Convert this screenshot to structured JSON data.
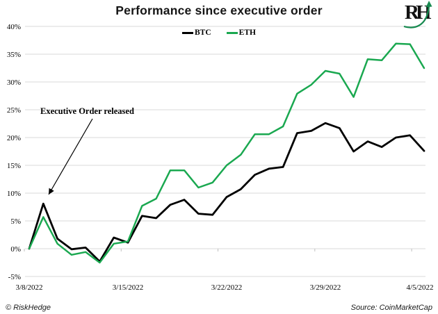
{
  "logo": {
    "text": "RH"
  },
  "colors": {
    "btc": "#000000",
    "eth": "#1aa850",
    "grid": "#d9d9d9",
    "axis_tick": "#bfbfbf",
    "logo_green": "#178a50"
  },
  "footer": {
    "left": "© RiskHedge",
    "right": "Source: CoinMarketCap"
  },
  "chart_data": {
    "type": "line",
    "title": "Performance since executive order",
    "x": [
      "3/8/2022",
      "3/9/2022",
      "3/10/2022",
      "3/11/2022",
      "3/12/2022",
      "3/13/2022",
      "3/14/2022",
      "3/15/2022",
      "3/16/2022",
      "3/17/2022",
      "3/18/2022",
      "3/19/2022",
      "3/20/2022",
      "3/21/2022",
      "3/22/2022",
      "3/23/2022",
      "3/24/2022",
      "3/25/2022",
      "3/26/2022",
      "3/27/2022",
      "3/28/2022",
      "3/29/2022",
      "3/30/2022",
      "3/31/2022",
      "4/1/2022",
      "4/2/2022",
      "4/3/2022",
      "4/4/2022",
      "4/5/2022"
    ],
    "x_labels": [
      "3/8/2022",
      "3/15/2022",
      "3/22/2022",
      "3/29/2022",
      "4/5/2022"
    ],
    "x_label_indices": [
      0,
      7,
      14,
      21,
      28
    ],
    "y_ticks": [
      40,
      35,
      30,
      25,
      20,
      15,
      10,
      5,
      0,
      -5
    ],
    "y_tick_labels": [
      "40%",
      "35%",
      "30%",
      "25%",
      "20%",
      "15%",
      "10%",
      "5%",
      "0%",
      "-5%"
    ],
    "ylim": [
      -5,
      40
    ],
    "unit": "%",
    "grid": "horizontal",
    "legend_position": "top-center",
    "annotation": {
      "text": "Executive Order released",
      "target": "BTC peak on 3/9/2022"
    },
    "series": [
      {
        "name": "BTC",
        "color": "#000000",
        "values": [
          0,
          8.1,
          1.8,
          -0.1,
          0.2,
          -2.3,
          2.0,
          1.1,
          5.9,
          5.5,
          7.9,
          8.8,
          6.3,
          6.1,
          9.3,
          10.7,
          13.3,
          14.4,
          14.7,
          20.8,
          21.2,
          22.6,
          21.7,
          17.5,
          19.3,
          18.3,
          20.0,
          20.4,
          17.6
        ]
      },
      {
        "name": "ETH",
        "color": "#1aa850",
        "values": [
          0,
          5.7,
          0.9,
          -1.1,
          -0.6,
          -2.5,
          0.9,
          1.3,
          7.7,
          9.0,
          14.1,
          14.1,
          11.0,
          11.9,
          15.0,
          16.9,
          20.6,
          20.6,
          22.0,
          27.9,
          29.5,
          32.0,
          31.5,
          27.3,
          34.1,
          33.9,
          36.9,
          36.8,
          32.5
        ]
      }
    ]
  }
}
